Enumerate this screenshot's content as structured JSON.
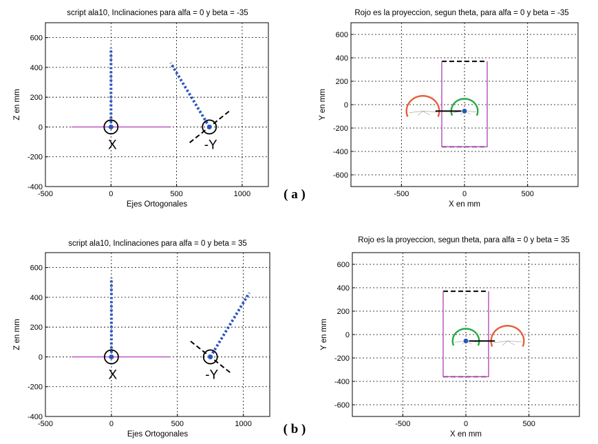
{
  "chart_data": [
    {
      "type": "line",
      "title": "script ala10, Inclinaciones para alfa = 0  y beta = -35",
      "xlabel": "Ejes Ortogonales",
      "ylabel": "Z en mm",
      "xlim": [
        -500,
        1200
      ],
      "ylim": [
        -400,
        700
      ],
      "xticks": [
        "-500",
        "0",
        "500",
        "1000"
      ],
      "yticks": [
        "-400",
        "-200",
        "0",
        "200",
        "400",
        "600"
      ],
      "grid": true,
      "series": [
        {
          "style": "solid",
          "color": "#c060c0",
          "x": [
            -300,
            450
          ],
          "y": [
            0,
            0
          ]
        },
        {
          "style": "dotted",
          "color": "#2a55c0",
          "x": [
            0,
            0
          ],
          "y": [
            0,
            530
          ]
        },
        {
          "style": "dotted",
          "color": "#2a55c0",
          "x": [
            750,
            455
          ],
          "y": [
            0,
            430
          ]
        },
        {
          "style": "dashed",
          "color": "#000000",
          "x": [
            600,
            900
          ],
          "y": [
            -105,
            105
          ]
        }
      ],
      "annotations": [
        {
          "text": "X",
          "x": 0,
          "y": 0,
          "marker": "circle"
        },
        {
          "text": "-Y",
          "x": 750,
          "y": 0,
          "marker": "circle"
        }
      ]
    },
    {
      "type": "line",
      "title": "Rojo es la proyeccion, segun theta, para alfa = 0  y beta = -35",
      "xlabel": "X en mm",
      "ylabel": "Y en mm",
      "xlim": [
        -900,
        900
      ],
      "ylim": [
        -700,
        700
      ],
      "xticks": [
        "-500",
        "0",
        "500"
      ],
      "yticks": [
        "-600",
        "-400",
        "-200",
        "0",
        "200",
        "400",
        "600"
      ],
      "grid": true,
      "series": [
        {
          "style": "dashed",
          "color": "#000000",
          "x": [
            -180,
            180
          ],
          "y": [
            370,
            370
          ]
        },
        {
          "style": "dashed",
          "color": "#000000",
          "x": [
            -180,
            180
          ],
          "y": [
            -360,
            -360
          ]
        },
        {
          "style": "solid",
          "color": "#c060c0",
          "x": [
            -180,
            -180,
            180,
            180
          ],
          "y": [
            370,
            -360,
            -360,
            370
          ]
        },
        {
          "style": "arc",
          "color": "#e8603a",
          "name": "",
          "cx": -330,
          "cy": -55,
          "r": 130
        },
        {
          "style": "arc",
          "color": "#22aa44",
          "name": "",
          "cx": 0,
          "cy": -55,
          "r": 105
        },
        {
          "style": "solid",
          "color": "#000000",
          "x": [
            -230,
            0
          ],
          "y": [
            -55,
            -55
          ]
        }
      ]
    },
    {
      "type": "line",
      "title": "script ala10, Inclinaciones para alfa = 0  y beta = 35",
      "xlabel": "Ejes Ortogonales",
      "ylabel": "Z en mm",
      "xlim": [
        -500,
        1200
      ],
      "ylim": [
        -400,
        700
      ],
      "xticks": [
        "-500",
        "0",
        "500",
        "1000"
      ],
      "yticks": [
        "-400",
        "-200",
        "0",
        "200",
        "400",
        "600"
      ],
      "grid": true,
      "series": [
        {
          "style": "solid",
          "color": "#c060c0",
          "x": [
            -300,
            450
          ],
          "y": [
            0,
            0
          ]
        },
        {
          "style": "dotted",
          "color": "#2a55c0",
          "x": [
            0,
            0
          ],
          "y": [
            0,
            530
          ]
        },
        {
          "style": "dotted",
          "color": "#2a55c0",
          "x": [
            750,
            1045
          ],
          "y": [
            0,
            430
          ]
        },
        {
          "style": "dashed",
          "color": "#000000",
          "x": [
            600,
            900
          ],
          "y": [
            105,
            -105
          ]
        }
      ],
      "annotations": [
        {
          "text": "X",
          "x": 0,
          "y": 0,
          "marker": "circle"
        },
        {
          "text": "-Y",
          "x": 750,
          "y": 0,
          "marker": "circle"
        }
      ]
    },
    {
      "type": "line",
      "title": "Rojo es la proyeccion, segun theta, para alfa = 0  y beta = 35",
      "xlabel": "X en mm",
      "ylabel": "Y en mm",
      "xlim": [
        -900,
        900
      ],
      "ylim": [
        -700,
        700
      ],
      "xticks": [
        "-500",
        "0",
        "500"
      ],
      "yticks": [
        "-600",
        "-400",
        "-200",
        "0",
        "200",
        "400",
        "600"
      ],
      "grid": true,
      "series": [
        {
          "style": "dashed",
          "color": "#000000",
          "x": [
            -180,
            180
          ],
          "y": [
            370,
            370
          ]
        },
        {
          "style": "dashed",
          "color": "#000000",
          "x": [
            -180,
            180
          ],
          "y": [
            -360,
            -360
          ]
        },
        {
          "style": "solid",
          "color": "#c060c0",
          "x": [
            -180,
            -180,
            180,
            180
          ],
          "y": [
            370,
            -360,
            -360,
            370
          ]
        },
        {
          "style": "arc",
          "color": "#22aa44",
          "name": "",
          "cx": 0,
          "cy": -55,
          "r": 105
        },
        {
          "style": "arc",
          "color": "#e8603a",
          "name": "",
          "cx": 330,
          "cy": -55,
          "r": 130
        },
        {
          "style": "solid",
          "color": "#000000",
          "x": [
            0,
            230
          ],
          "y": [
            -55,
            -55
          ]
        }
      ]
    }
  ],
  "panel_labels": [
    "( a )",
    "( b )"
  ]
}
